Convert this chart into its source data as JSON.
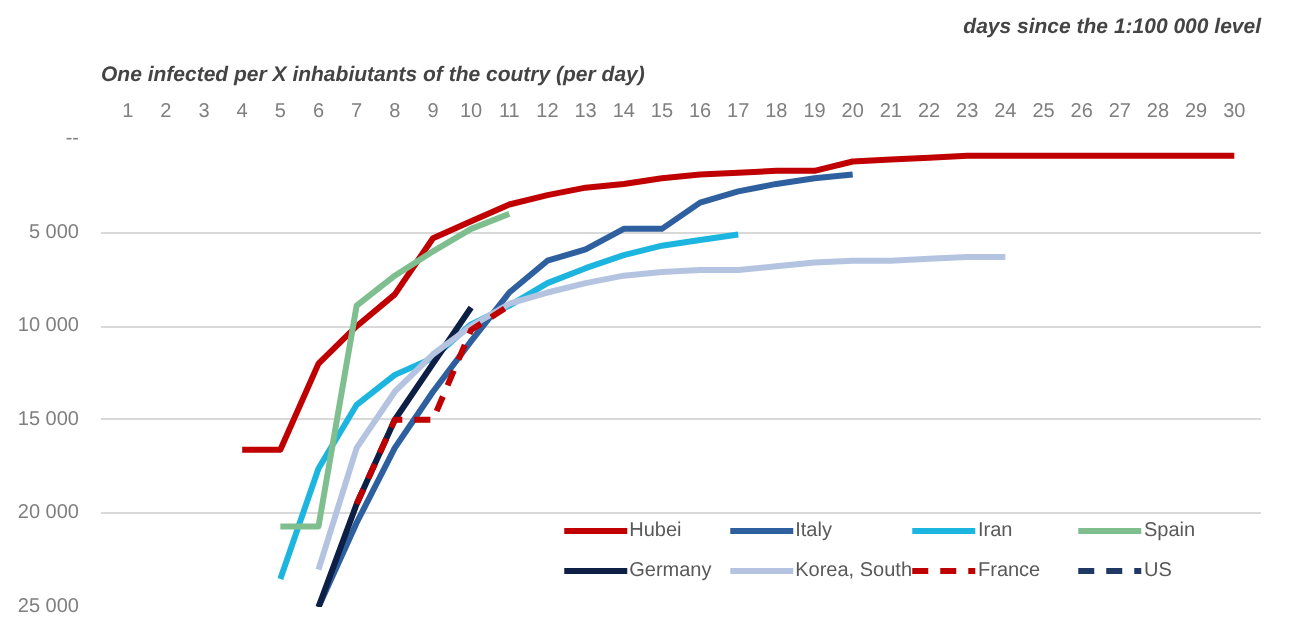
{
  "chart_data": {
    "type": "line",
    "title": "One infected per X inhabiutants of the coutry  (per day)",
    "xlabel": "days since the 1:100 000 level",
    "x": [
      4,
      5,
      6,
      7,
      8,
      9,
      10,
      11,
      12,
      13,
      14,
      15,
      16,
      17,
      18,
      19,
      20,
      21,
      22,
      23,
      24,
      25,
      26,
      27,
      28,
      29,
      30
    ],
    "xlim": [
      0.3,
      30.7
    ],
    "xticks": [
      1,
      2,
      3,
      4,
      5,
      6,
      7,
      8,
      9,
      10,
      11,
      12,
      13,
      14,
      15,
      16,
      17,
      18,
      19,
      20,
      21,
      22,
      23,
      24,
      25,
      26,
      27,
      28,
      29,
      30
    ],
    "ylim": [
      25000,
      0
    ],
    "yticks": [
      {
        "value": 0,
        "label": "--"
      },
      {
        "value": 5000,
        "label": "5 000"
      },
      {
        "value": 10000,
        "label": "10 000"
      },
      {
        "value": 15000,
        "label": "15 000"
      },
      {
        "value": 20000,
        "label": "20 000"
      },
      {
        "value": 25000,
        "label": "25 000"
      }
    ],
    "grid": "y",
    "legend": "bottom right",
    "line_style": "solid",
    "series": [
      {
        "name": "Hubei",
        "color": "#c00000",
        "values": [
          16600,
          16600,
          12000,
          10000,
          8300,
          5300,
          4400,
          3500,
          3000,
          2600,
          2400,
          2100,
          1900,
          1800,
          1700,
          1700,
          1200,
          1100,
          1000,
          900,
          900,
          900,
          900,
          900,
          900,
          900,
          900
        ]
      },
      {
        "name": "Italy",
        "color": "#2e5f9e",
        "values": [
          null,
          null,
          25000,
          20500,
          16500,
          13500,
          10800,
          8200,
          6500,
          5900,
          4800,
          4800,
          3400,
          2800,
          2400,
          2100,
          1900,
          null,
          null,
          null,
          null,
          null,
          null,
          null,
          null,
          null,
          null
        ]
      },
      {
        "name": "Iran",
        "color": "#1cb5e0",
        "values": [
          null,
          23500,
          17600,
          14200,
          12600,
          11700,
          9900,
          8900,
          7700,
          6900,
          6200,
          5700,
          5400,
          5100,
          null,
          null,
          null,
          null,
          null,
          null,
          null,
          null,
          null,
          null,
          null,
          null,
          null
        ]
      },
      {
        "name": "Spain",
        "color": "#7fbf8f",
        "values": [
          null,
          20700,
          20700,
          8900,
          7300,
          6000,
          4800,
          4000,
          null,
          null,
          null,
          null,
          null,
          null,
          null,
          null,
          null,
          null,
          null,
          null,
          null,
          null,
          null,
          null,
          null,
          null,
          null
        ]
      },
      {
        "name": "Germany",
        "color": "#0d1f45",
        "values": [
          null,
          null,
          25000,
          19500,
          15000,
          12000,
          9000,
          null,
          null,
          null,
          null,
          null,
          null,
          null,
          null,
          null,
          null,
          null,
          null,
          null,
          null,
          null,
          null,
          null,
          null,
          null,
          null
        ]
      },
      {
        "name": "Korea, South",
        "color": "#b4c4e0",
        "values": [
          null,
          null,
          23000,
          16500,
          13500,
          11500,
          10000,
          8800,
          8200,
          7700,
          7300,
          7100,
          7000,
          7000,
          6800,
          6600,
          6500,
          6500,
          6400,
          6300,
          6300,
          null,
          null,
          null,
          null,
          null,
          null
        ]
      },
      {
        "name": "France",
        "color": "#c00000",
        "line_style": "dashed",
        "values": [
          null,
          null,
          null,
          19500,
          15000,
          15000,
          10200,
          8900,
          null,
          null,
          null,
          null,
          null,
          null,
          null,
          null,
          null,
          null,
          null,
          null,
          null,
          null,
          null,
          null,
          null,
          null,
          null
        ]
      },
      {
        "name": "US",
        "color": "#1f3864",
        "line_style": "dashed",
        "values": [
          null,
          null,
          null,
          null,
          null,
          null,
          null,
          null,
          null,
          null,
          null,
          null,
          null,
          null,
          null,
          null,
          null,
          null,
          null,
          null,
          null,
          null,
          null,
          null,
          null,
          null,
          null
        ]
      }
    ]
  }
}
